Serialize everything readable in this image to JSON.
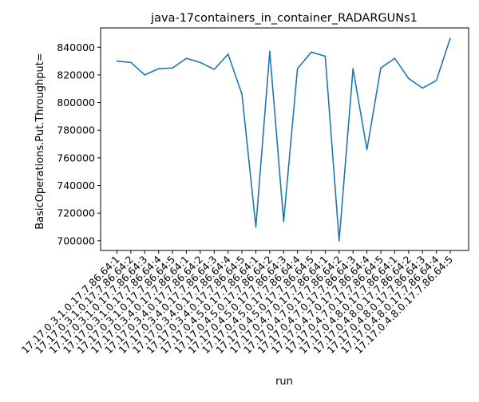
{
  "chart_data": {
    "type": "line",
    "title": "java-17containers_in_container_RADARGUNs1",
    "xlabel": "run",
    "ylabel": "BasicOperations.Put.Throughput=",
    "x": [
      "17.17.0.3.1.0.17.7.86.64:1",
      "17.17.0.3.1.0.17.7.86.64:2",
      "17.17.0.3.1.0.17.7.86.64:3",
      "17.17.0.3.1.0.17.7.86.64:4",
      "17.17.0.3.1.0.17.7.86.64:5",
      "17.17.0.3.4.0.17.7.86.64:1",
      "17.17.0.3.4.0.17.7.86.64:2",
      "17.17.0.3.4.0.17.7.86.64:3",
      "17.17.0.3.4.0.17.7.86.64:4",
      "17.17.0.3.4.0.17.7.86.64:5",
      "17.17.0.4.5.0.17.7.86.64:1",
      "17.17.0.4.5.0.17.7.86.64:2",
      "17.17.0.4.5.0.17.7.86.64:3",
      "17.17.0.4.5.0.17.7.86.64:4",
      "17.17.0.4.5.0.17.7.86.64:5",
      "17.17.0.4.7.0.17.7.86.64:1",
      "17.17.0.4.7.0.17.7.86.64:2",
      "17.17.0.4.7.0.17.7.86.64:3",
      "17.17.0.4.7.0.17.7.86.64:4",
      "17.17.0.4.7.0.17.7.86.64:5",
      "17.17.0.4.8.0.17.7.86.64:1",
      "17.17.0.4.8.0.17.7.86.64:2",
      "17.17.0.4.8.0.17.7.86.64:3",
      "17.17.0.4.8.0.17.7.86.64:4",
      "17.17.0.4.8.0.17.7.86.64:5"
    ],
    "series": [
      {
        "values": [
          830000,
          829000,
          820000,
          824500,
          825000,
          832000,
          829000,
          824000,
          835000,
          806000,
          710000,
          837000,
          714000,
          824500,
          836500,
          833500,
          700000,
          824500,
          766000,
          825000,
          832000,
          817500,
          810500,
          816000,
          846500
        ],
        "color": "#1f77b4"
      }
    ],
    "yticks": [
      700000,
      720000,
      740000,
      760000,
      780000,
      800000,
      820000,
      840000
    ],
    "ylim": [
      693000,
      854000
    ],
    "grid": false,
    "legend": "none"
  }
}
